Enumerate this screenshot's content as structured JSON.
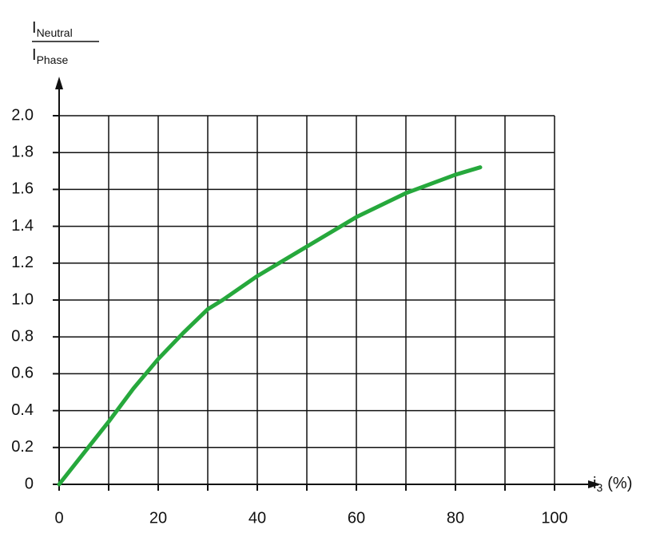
{
  "chart_data": {
    "type": "line",
    "y_label": {
      "numerator": {
        "base": "I",
        "sub": "Neutral"
      },
      "denominator": {
        "base": "I",
        "sub": "Phase"
      }
    },
    "x_label": {
      "base": "i",
      "sub": "3",
      "suffix": "(%)"
    },
    "x": [
      0,
      5,
      10,
      15,
      20,
      25,
      30,
      33,
      40,
      50,
      60,
      70,
      80,
      85
    ],
    "series": [
      {
        "color": "#26a83c",
        "values": [
          0,
          0.17,
          0.34,
          0.52,
          0.68,
          0.82,
          0.95,
          1.0,
          1.13,
          1.29,
          1.45,
          1.58,
          1.68,
          1.72
        ]
      }
    ],
    "xlim": [
      0,
      100
    ],
    "xticks": [
      0,
      20,
      40,
      60,
      80,
      100
    ],
    "xminor": [
      10,
      30,
      50,
      70,
      90
    ],
    "ylim": [
      0,
      2
    ],
    "yticks": [
      0,
      0.2,
      0.4,
      0.6,
      0.8,
      {
        "value": 1,
        "label": "1.0"
      },
      1.2,
      1.4,
      1.6,
      1.8,
      {
        "value": 2,
        "label": "2.0"
      }
    ],
    "grid": true
  }
}
